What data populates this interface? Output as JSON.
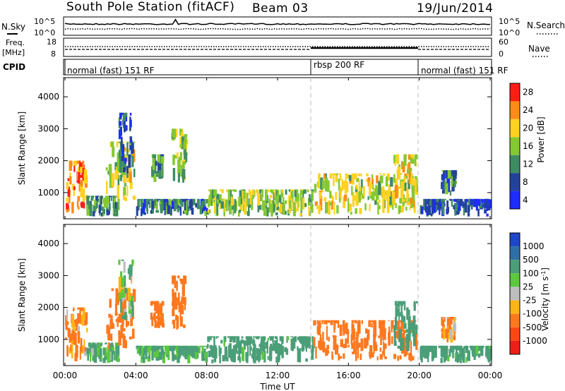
{
  "header": {
    "station": "South Pole Station (fitACF)",
    "beam": "Beam 03",
    "date": "19/Jun/2014"
  },
  "noise_panel": {
    "left_label": "N.Sky",
    "right_label": "N.Search",
    "tick_top": "10^5",
    "tick_bottom": "10^0"
  },
  "freq_panel": {
    "left_label_1": "Freq.",
    "left_label_2": "[MHz]",
    "right_label": "Nave",
    "left_ticks": [
      "18",
      "8"
    ],
    "right_ticks": [
      "60",
      "0"
    ]
  },
  "cpid_panel": {
    "label": "CPID",
    "segments": [
      {
        "text": "normal (fast) 151 RF",
        "start_hour": 0,
        "end_hour": 14
      },
      {
        "text": "rbsp 200 RF",
        "start_hour": 14,
        "end_hour": 20
      },
      {
        "text": "normal (fast) 151 RF",
        "start_hour": 20,
        "end_hour": 24
      }
    ]
  },
  "x_axis": {
    "title": "Time UT",
    "ticks": [
      "00:00",
      "04:00",
      "08:00",
      "12:00",
      "16:00",
      "20:00",
      "00:00"
    ],
    "range_hours": [
      0,
      24
    ]
  },
  "chart_data": [
    {
      "type": "heatmap",
      "name": "power",
      "ylabel": "Slant Range [km]",
      "yticks": [
        "1000",
        "2000",
        "3000",
        "4000"
      ],
      "ylim": [
        180,
        4600
      ],
      "xlim_hours": [
        0,
        24
      ],
      "colorbar_label": "Power [dB]",
      "colorbar_ticks": [
        "4",
        "8",
        "12",
        "16",
        "20",
        "24",
        "28"
      ],
      "colorbar_colors": [
        "#1e2cff",
        "#23429c",
        "#3e8c64",
        "#84c832",
        "#ffd21e",
        "#ff8c14",
        "#ff1e14"
      ],
      "clusters": [
        {
          "t": [
            0.0,
            1.2
          ],
          "r": [
            300,
            2000
          ],
          "level": 24
        },
        {
          "t": [
            1.2,
            3.0
          ],
          "r": [
            250,
            900
          ],
          "level": 12
        },
        {
          "t": [
            2.3,
            3.9
          ],
          "r": [
            700,
            2600
          ],
          "level": 18
        },
        {
          "t": [
            3.0,
            3.8
          ],
          "r": [
            1600,
            3500
          ],
          "level": 8
        },
        {
          "t": [
            4.8,
            5.5
          ],
          "r": [
            1300,
            2200
          ],
          "level": 12
        },
        {
          "t": [
            6.0,
            6.8
          ],
          "r": [
            1300,
            3000
          ],
          "level": 16
        },
        {
          "t": [
            4.0,
            8.0
          ],
          "r": [
            250,
            800
          ],
          "level": 10
        },
        {
          "t": [
            8.0,
            14.0
          ],
          "r": [
            250,
            1100
          ],
          "level": 16
        },
        {
          "t": [
            14.0,
            19.8
          ],
          "r": [
            300,
            1600
          ],
          "level": 18
        },
        {
          "t": [
            18.5,
            19.8
          ],
          "r": [
            600,
            2200
          ],
          "level": 20
        },
        {
          "t": [
            20.0,
            24.0
          ],
          "r": [
            250,
            800
          ],
          "level": 8
        },
        {
          "t": [
            21.2,
            22.0
          ],
          "r": [
            900,
            1700
          ],
          "level": 10
        }
      ]
    },
    {
      "type": "heatmap",
      "name": "velocity",
      "ylabel": "Slant Range [km]",
      "yticks": [
        "1000",
        "2000",
        "3000",
        "4000"
      ],
      "ylim": [
        180,
        4600
      ],
      "xlim_hours": [
        0,
        24
      ],
      "colorbar_label": "Velocity [m s^-1]",
      "colorbar_ticks": [
        "1000",
        "500",
        "100",
        "25",
        "-25",
        "-100",
        "-500",
        "-1000"
      ],
      "colorbar_colors": [
        "#1e46c8",
        "#2e6fa8",
        "#4a9e78",
        "#5cc83c",
        "#bebebe",
        "#ffb414",
        "#ff781e",
        "#ff4614",
        "#f01e14"
      ],
      "clusters": [
        {
          "t": [
            0.0,
            1.2
          ],
          "r": [
            300,
            2000
          ],
          "level": -100
        },
        {
          "t": [
            1.2,
            3.0
          ],
          "r": [
            250,
            900
          ],
          "level": 100
        },
        {
          "t": [
            2.3,
            3.9
          ],
          "r": [
            700,
            2600
          ],
          "level": -300
        },
        {
          "t": [
            3.0,
            3.8
          ],
          "r": [
            1600,
            3500
          ],
          "level": 50
        },
        {
          "t": [
            4.8,
            5.5
          ],
          "r": [
            1300,
            2200
          ],
          "level": -200
        },
        {
          "t": [
            6.0,
            6.8
          ],
          "r": [
            1300,
            3000
          ],
          "level": -300
        },
        {
          "t": [
            4.0,
            8.0
          ],
          "r": [
            250,
            800
          ],
          "level": 150
        },
        {
          "t": [
            8.0,
            14.0
          ],
          "r": [
            250,
            1100
          ],
          "level": 200
        },
        {
          "t": [
            14.0,
            19.8
          ],
          "r": [
            300,
            1600
          ],
          "level": -300
        },
        {
          "t": [
            18.5,
            19.8
          ],
          "r": [
            600,
            2200
          ],
          "level": 300
        },
        {
          "t": [
            20.0,
            24.0
          ],
          "r": [
            250,
            800
          ],
          "level": 200
        },
        {
          "t": [
            21.2,
            22.0
          ],
          "r": [
            900,
            1700
          ],
          "level": -100
        }
      ]
    }
  ]
}
